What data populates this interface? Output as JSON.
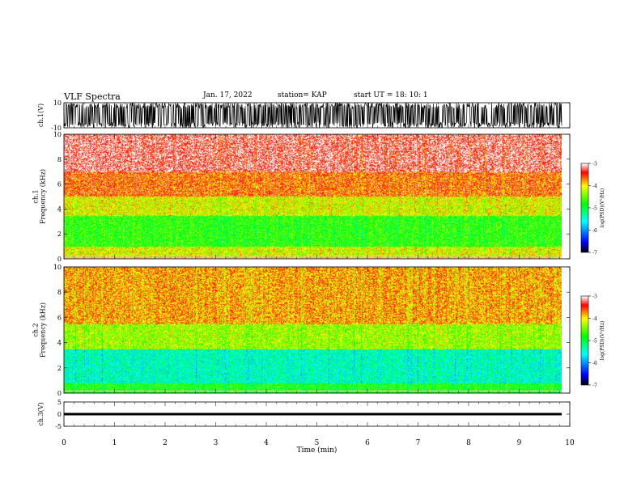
{
  "header": {
    "title": "VLF Spectra",
    "date": "Jan. 17, 2022",
    "station": "station= KAP",
    "start": "start  UT =   18: 10: 1"
  },
  "chart_data": [
    {
      "type": "line",
      "panel": "ch1-waveform",
      "ylabel": "ch.1(V)",
      "ylim": [
        -10,
        10
      ],
      "yticks": [
        "10",
        "-10"
      ],
      "xlim": [
        0,
        10
      ],
      "description_values": "dense oscillating waveform filling nearly full range",
      "series": [
        {
          "values_range": [
            -10,
            10
          ]
        }
      ]
    },
    {
      "type": "heatmap",
      "panel": "ch1-spectrogram",
      "ylabel": "ch.1\nFrequency  (kHz)",
      "ylim": [
        0,
        10
      ],
      "yticks": [
        "0",
        "2",
        "4",
        "6",
        "8",
        "10"
      ],
      "xlim": [
        0,
        9.8
      ],
      "colorbar": {
        "label": "log(PSD)(V²/Hz)",
        "range": [
          -7,
          -3
        ],
        "ticks": [
          "-3",
          "-4",
          "-5",
          "-6",
          "-7"
        ]
      },
      "bands": [
        {
          "from": 0,
          "to": 1,
          "level": -4.1
        },
        {
          "from": 1,
          "to": 3.5,
          "level": -4.7
        },
        {
          "from": 3.5,
          "to": 5,
          "level": -4.1
        },
        {
          "from": 5,
          "to": 7,
          "level": -3.6
        },
        {
          "from": 7,
          "to": 10,
          "level": -3.2
        }
      ]
    },
    {
      "type": "heatmap",
      "panel": "ch2-spectrogram",
      "ylabel": "ch.2\nFrequency  (kHz)",
      "ylim": [
        0,
        10
      ],
      "yticks": [
        "0",
        "2",
        "4",
        "6",
        "8",
        "10"
      ],
      "xlim": [
        0,
        9.8
      ],
      "colorbar": {
        "label": "log(PSD)(V²/Hz)",
        "range": [
          -7,
          -3
        ],
        "ticks": [
          "-3",
          "-4",
          "-5",
          "-6",
          "-7"
        ]
      },
      "bands": [
        {
          "from": 0,
          "to": 0.8,
          "level": -4.8
        },
        {
          "from": 0.8,
          "to": 3.5,
          "level": -5.4
        },
        {
          "from": 3.5,
          "to": 5.5,
          "level": -4.3
        },
        {
          "from": 5.5,
          "to": 10,
          "level": -3.8
        }
      ]
    },
    {
      "type": "line",
      "panel": "ch3-waveform",
      "ylabel": "ch.3(V)",
      "ylim": [
        -5,
        5
      ],
      "yticks": [
        "5",
        "0",
        "-5"
      ],
      "xlim": [
        0,
        10
      ],
      "series": [
        {
          "values_range": [
            -0.5,
            0.5
          ]
        }
      ]
    }
  ],
  "xaxis": {
    "label": "Time  (min)",
    "ticks": [
      "0",
      "1",
      "2",
      "3",
      "4",
      "5",
      "6",
      "7",
      "8",
      "9",
      "10"
    ]
  },
  "colors": {
    "white": "#ffffff",
    "red": "#ff0000",
    "yellow": "#ffff00",
    "green": "#00ff00",
    "cyan": "#00ffff",
    "blue": "#0000ff",
    "black": "#000000"
  }
}
